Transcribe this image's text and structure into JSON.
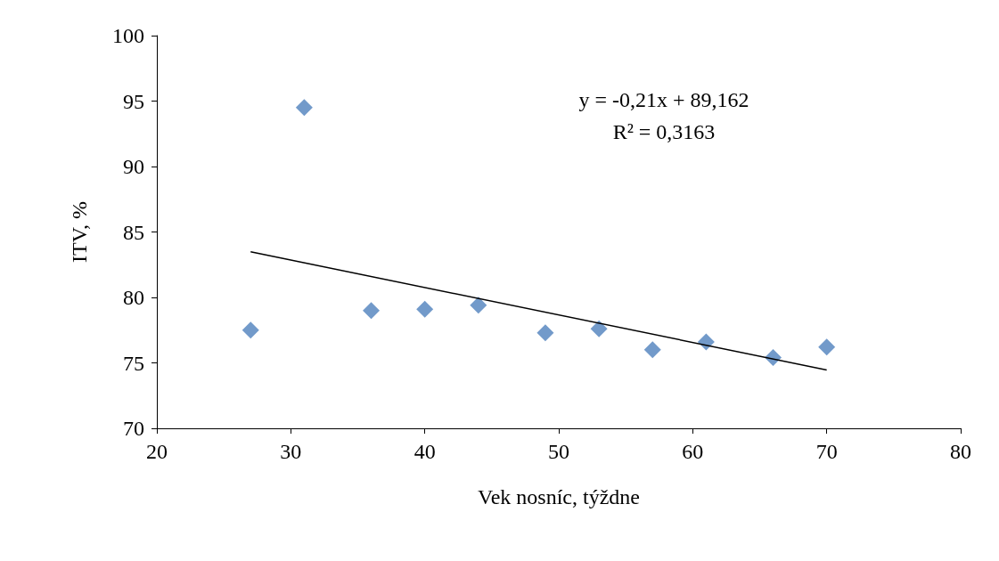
{
  "chart_data": {
    "type": "scatter",
    "xlabel": "Vek nosníc, týždne",
    "ylabel": "ITV, %",
    "xlim": [
      20,
      80
    ],
    "xticks": [
      20,
      30,
      40,
      50,
      60,
      70,
      80
    ],
    "ylim": [
      70,
      100
    ],
    "yticks": [
      70,
      75,
      80,
      85,
      90,
      95,
      100
    ],
    "grid": false,
    "marker": "diamond",
    "annotations": [
      "y = -0,21x + 89,162",
      "R² = 0,3163"
    ],
    "series": [
      {
        "color": "#4f81bd",
        "x": [
          27,
          31,
          36,
          40,
          44,
          49,
          53,
          57,
          61,
          66,
          70
        ],
        "values": [
          77.5,
          94.5,
          79.0,
          79.1,
          79.4,
          77.3,
          77.6,
          76.0,
          76.6,
          75.4,
          76.2
        ]
      },
      {
        "type": "line",
        "color": "#000000",
        "marker": "none",
        "x": [
          27,
          70
        ],
        "values": [
          83.49,
          74.46
        ]
      }
    ]
  }
}
